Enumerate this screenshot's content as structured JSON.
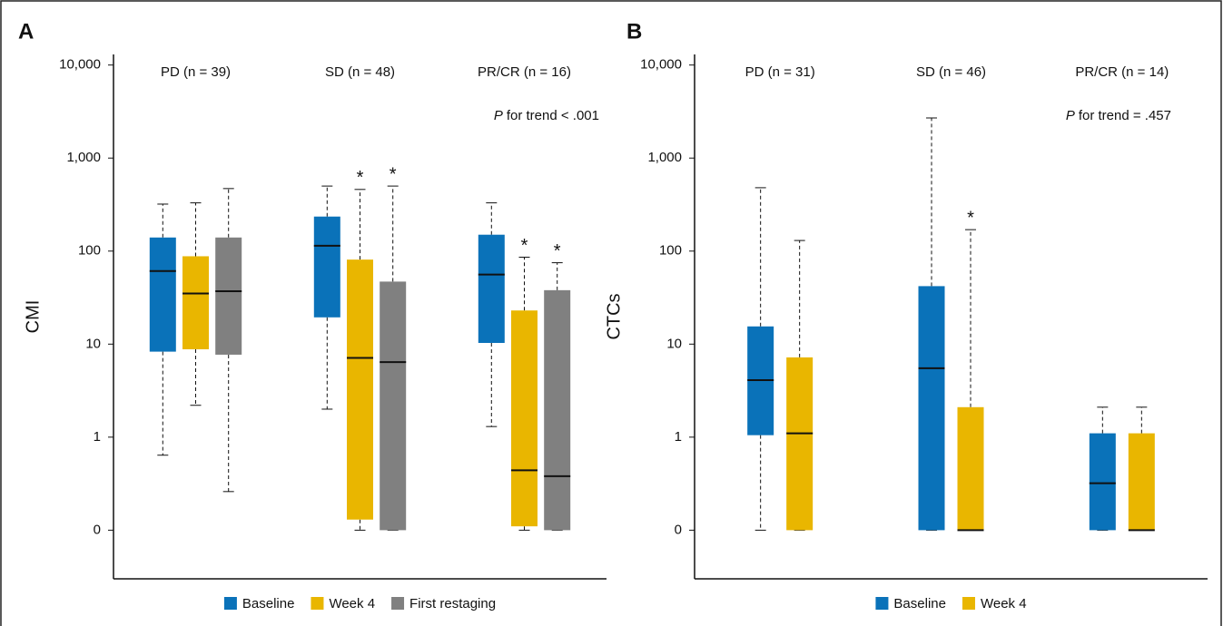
{
  "chart_data": [
    {
      "type": "box",
      "panel_label": "A",
      "ylabel": "CMI",
      "scale": "log",
      "ylim": [
        0.03,
        13000
      ],
      "yticks": [
        0,
        1,
        10,
        100,
        {
          "value": 1000,
          "label": "1,000"
        },
        {
          "value": 10000,
          "label": "10,000"
        }
      ],
      "groups": [
        "PD (n = 39)",
        "SD (n = 48)",
        "PR/CR (n = 16)"
      ],
      "annotation": {
        "italic": "P",
        "text": "for trend < .001"
      },
      "sig_marker": "*",
      "series": [
        {
          "name": "Baseline",
          "color": "#0a72b9",
          "significant": [
            false,
            false,
            false
          ],
          "boxes": [
            {
              "low": 0.64,
              "q1": 8.3,
              "median": 61,
              "q3": 140,
              "high": 320
            },
            {
              "low": 2.0,
              "q1": 19.4,
              "median": 114,
              "q3": 235,
              "high": 500
            },
            {
              "low": 1.3,
              "q1": 10.3,
              "median": 56,
              "q3": 150,
              "high": 330
            }
          ]
        },
        {
          "name": "Week 4",
          "color": "#e9b600",
          "significant": [
            false,
            true,
            true
          ],
          "boxes": [
            {
              "low": 2.2,
              "q1": 8.8,
              "median": 35,
              "q3": 88,
              "high": 330
            },
            {
              "low": 0,
              "q1": 0.13,
              "median": 7.1,
              "q3": 81,
              "high": 460
            },
            {
              "low": 0,
              "q1": 0.11,
              "median": 0.44,
              "q3": 23,
              "high": 86
            }
          ]
        },
        {
          "name": "First restaging",
          "color": "#808080",
          "significant": [
            false,
            true,
            true
          ],
          "boxes": [
            {
              "low": 0.26,
              "q1": 7.7,
              "median": 37,
              "q3": 140,
              "high": 470
            },
            {
              "low": 0,
              "q1": 0,
              "median": 6.4,
              "q3": 47,
              "high": 500
            },
            {
              "low": 0,
              "q1": 0,
              "median": 0.38,
              "q3": 38,
              "high": 75
            }
          ]
        }
      ]
    },
    {
      "type": "box",
      "panel_label": "B",
      "ylabel": "CTCs",
      "scale": "log",
      "ylim": [
        0.03,
        13000
      ],
      "yticks": [
        0,
        1,
        10,
        100,
        {
          "value": 1000,
          "label": "1,000"
        },
        {
          "value": 10000,
          "label": "10,000"
        }
      ],
      "groups": [
        "PD (n = 31)",
        "SD (n = 46)",
        "PR/CR (n = 14)"
      ],
      "annotation": {
        "italic": "P",
        "text": "for trend = .457"
      },
      "sig_marker": "*",
      "series": [
        {
          "name": "Baseline",
          "color": "#0a72b9",
          "significant": [
            false,
            false,
            false
          ],
          "boxes": [
            {
              "low": 0,
              "q1": 1.05,
              "median": 4.1,
              "q3": 15.5,
              "high": 480
            },
            {
              "low": 0,
              "q1": 0,
              "median": 5.5,
              "q3": 42,
              "high": 2700
            },
            {
              "low": 0,
              "q1": 0,
              "median": 0.32,
              "q3": 1.1,
              "high": 2.1
            }
          ]
        },
        {
          "name": "Week 4",
          "color": "#e9b600",
          "significant": [
            false,
            true,
            false
          ],
          "boxes": [
            {
              "low": 0,
              "q1": 0,
              "median": 1.1,
              "q3": 7.2,
              "high": 130
            },
            {
              "low": 0,
              "q1": 0,
              "median": 0,
              "q3": 2.1,
              "high": 170
            },
            {
              "low": 0,
              "q1": 0,
              "median": 0,
              "q3": 1.1,
              "high": 2.1
            }
          ]
        }
      ]
    }
  ]
}
